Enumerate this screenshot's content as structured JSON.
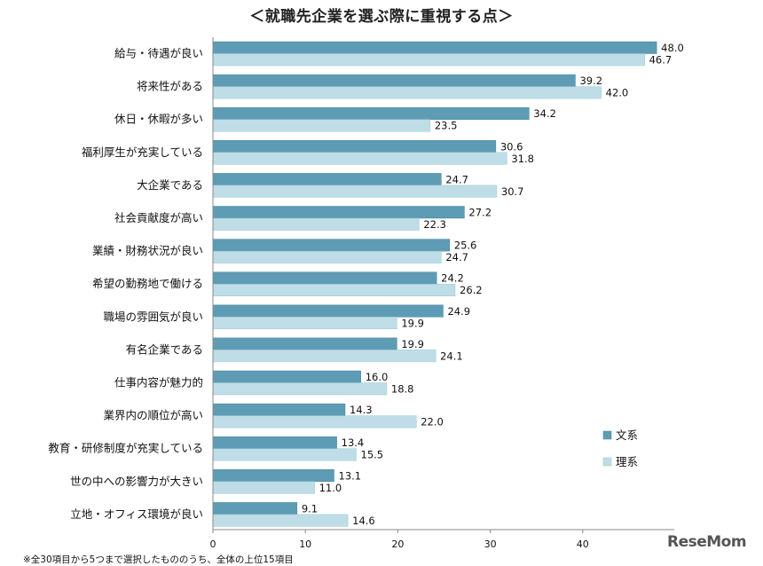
{
  "chart_data": {
    "type": "bar",
    "orientation": "horizontal",
    "title": "＜就職先企業を選ぶ際に重視する点＞",
    "categories": [
      "給与・待遇が良い",
      "将来性がある",
      "休日・休暇が多い",
      "福利厚生が充実している",
      "大企業である",
      "社会貢献度が高い",
      "業績・財務状況が良い",
      "希望の勤務地で働ける",
      "職場の雰囲気が良い",
      "有名企業である",
      "仕事内容が魅力的",
      "業界内の順位が高い",
      "教育・研修制度が充実している",
      "世の中への影響力が大きい",
      "立地・オフィス環境が良い"
    ],
    "series": [
      {
        "name": "文系",
        "color": "#5d9cb4",
        "values": [
          48.0,
          39.2,
          34.2,
          30.6,
          24.7,
          27.2,
          25.6,
          24.2,
          24.9,
          19.9,
          16.0,
          14.3,
          13.4,
          13.1,
          9.1
        ],
        "labels": [
          "48.0",
          "39.2",
          "34.2",
          "30.6",
          "24.7",
          "27.2",
          "25.6",
          "24.2",
          "24.9",
          "19.9",
          "16.0",
          "14.3",
          "13.4",
          "13.1",
          "9.1"
        ]
      },
      {
        "name": "理系",
        "color": "#bfdde7",
        "values": [
          46.7,
          42.0,
          23.5,
          31.8,
          30.7,
          22.3,
          24.7,
          26.2,
          19.9,
          24.1,
          18.8,
          22.0,
          15.5,
          11.0,
          14.6
        ],
        "labels": [
          "46.7",
          "42.0",
          "23.5",
          "31.8",
          "30.7",
          "22.3",
          "24.7",
          "26.2",
          "19.9",
          "24.1",
          "18.8",
          "22.0",
          "15.5",
          "11.0",
          "14.6"
        ]
      }
    ],
    "xlim": [
      0,
      48
    ],
    "xticks": [
      "0",
      "10",
      "20",
      "30",
      "40"
    ],
    "grid": false,
    "legend_position": "right",
    "xlabel": "",
    "ylabel": ""
  },
  "footnote": "※全30項目から5つまで選択したもののうち、全体の上位15項目",
  "watermark": "ReseMom"
}
